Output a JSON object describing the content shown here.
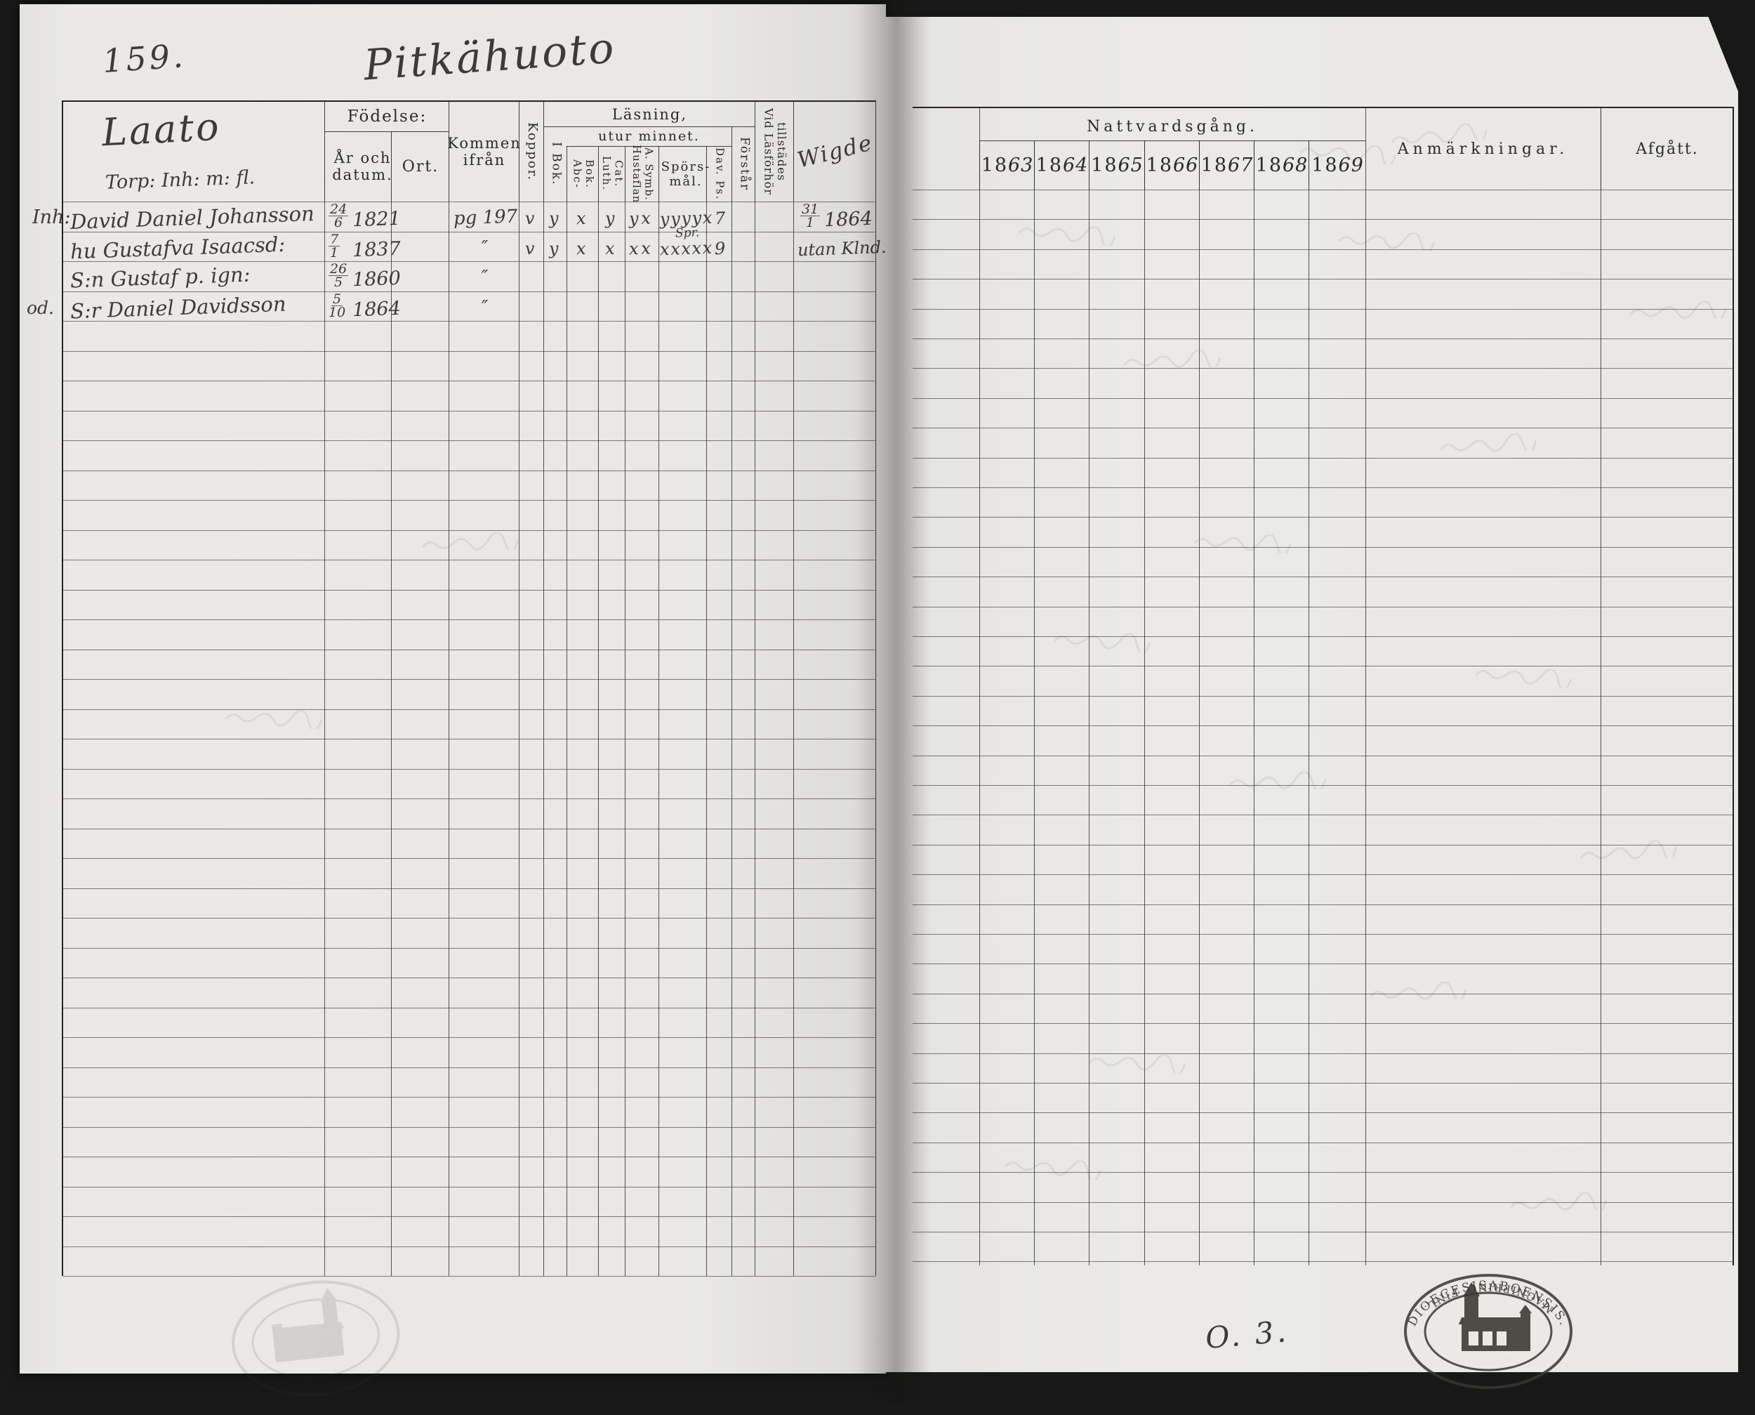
{
  "page": {
    "number": "159.",
    "title": "Pitkähuoto",
    "bottom_note": "O. 3."
  },
  "left_table": {
    "household_header": "Laato",
    "household_subheader": "Torp: Inh: m: fl.",
    "headers": {
      "birth_group": "Födelse:",
      "birth_date": "År och datum.",
      "birth_place": "Ort.",
      "come_from": "Kommen ifrån",
      "smallpox": "Koppor.",
      "reading_group": "Läsning,",
      "reading_subgroup": "utur minnet.",
      "in_book": "I Bok.",
      "abc_book": "Abc-Bok.",
      "luther_catechism": "Luth. Cat.",
      "hustavlan": "Hustaflan A. Symb.",
      "questions": "Spörs-mål.",
      "davids_psalms": "Dav. Ps.",
      "understands": "Förstår",
      "attendance": "Vid Läsförhör tillstädes",
      "married_handwritten": "Wigde"
    },
    "rows": [
      {
        "margin": "Inh:",
        "name": "David Daniel Johansson",
        "birth_num": "24",
        "birth_den": "6",
        "birth_year": "1821",
        "come_from": "pg 197",
        "smallpox": "v",
        "in_book": "y",
        "abc": "x",
        "luth": "y",
        "hust": "y x",
        "questions": "y y y y x",
        "questions_note": "",
        "dav_ps": "7",
        "married_num": "31",
        "married_den": "1",
        "married_year": "1864",
        "married_note": ""
      },
      {
        "margin": "",
        "name": "hu Gustafva Isaacsd:",
        "birth_num": "7",
        "birth_den": "1",
        "birth_year": "1837",
        "come_from": "″",
        "smallpox": "v",
        "in_book": "y",
        "abc": "x",
        "luth": "x",
        "hust": "x x",
        "questions": "x x x x x",
        "questions_note": "Spr.",
        "dav_ps": "9",
        "married_note": "utan Klnd."
      },
      {
        "margin": "od.",
        "name": "S:n Gustaf p. ign:",
        "birth_num": "26",
        "birth_den": "5",
        "birth_year": "1860",
        "come_from": "″"
      },
      {
        "margin": "",
        "name": "S:r Daniel Davidsson",
        "birth_num": "5",
        "birth_den": "10",
        "birth_year": "1864",
        "come_from": "″"
      }
    ]
  },
  "right_table": {
    "communion_header": "Nattvardsgång.",
    "years": [
      {
        "printed": "18",
        "script": "63"
      },
      {
        "printed": "18",
        "script": "64"
      },
      {
        "printed": "18",
        "script": "65"
      },
      {
        "printed": "18",
        "script": "66"
      },
      {
        "printed": "18",
        "script": "67"
      },
      {
        "printed": "18",
        "script": "68"
      },
      {
        "printed": "18",
        "script": "69"
      }
    ],
    "remarks_header": "Anmärkningar.",
    "departed_header": "Afgått."
  },
  "stamps": {
    "diocese_top": "DIOECESISABOENSIS.",
    "diocese_bottom": "MAGNIPRINC. FINL."
  }
}
